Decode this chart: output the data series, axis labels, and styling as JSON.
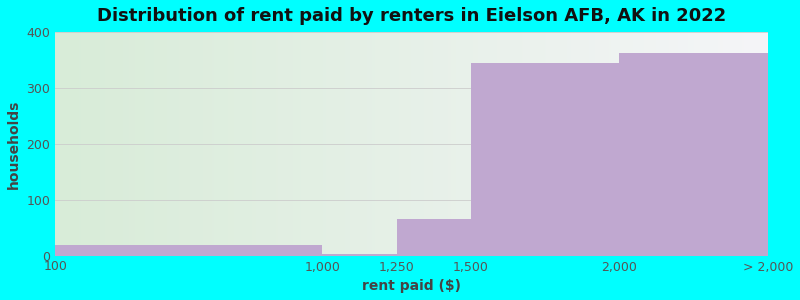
{
  "title": "Distribution of rent paid by renters in Eielson AFB, AK in 2022",
  "xlabel": "rent paid ($)",
  "ylabel": "households",
  "bar_edges": [
    100,
    1000,
    1250,
    1500,
    2000,
    2500
  ],
  "bar_values": [
    19,
    3,
    65,
    344,
    363
  ],
  "xtick_positions": [
    100,
    1000,
    1250,
    1500,
    2000,
    2500
  ],
  "xtick_labels": [
    "100",
    "1,000",
    "1,250",
    "1,500",
    "2,000",
    "> 2,000"
  ],
  "bar_color": "#c0a8d0",
  "bg_color_left": "#d8ecd8",
  "bg_color_right": "#f5f5f8",
  "background_color": "#00ffff",
  "ylim": [
    0,
    400
  ],
  "yticks": [
    0,
    100,
    200,
    300,
    400
  ],
  "title_fontsize": 13,
  "axis_label_fontsize": 10,
  "tick_fontsize": 9
}
